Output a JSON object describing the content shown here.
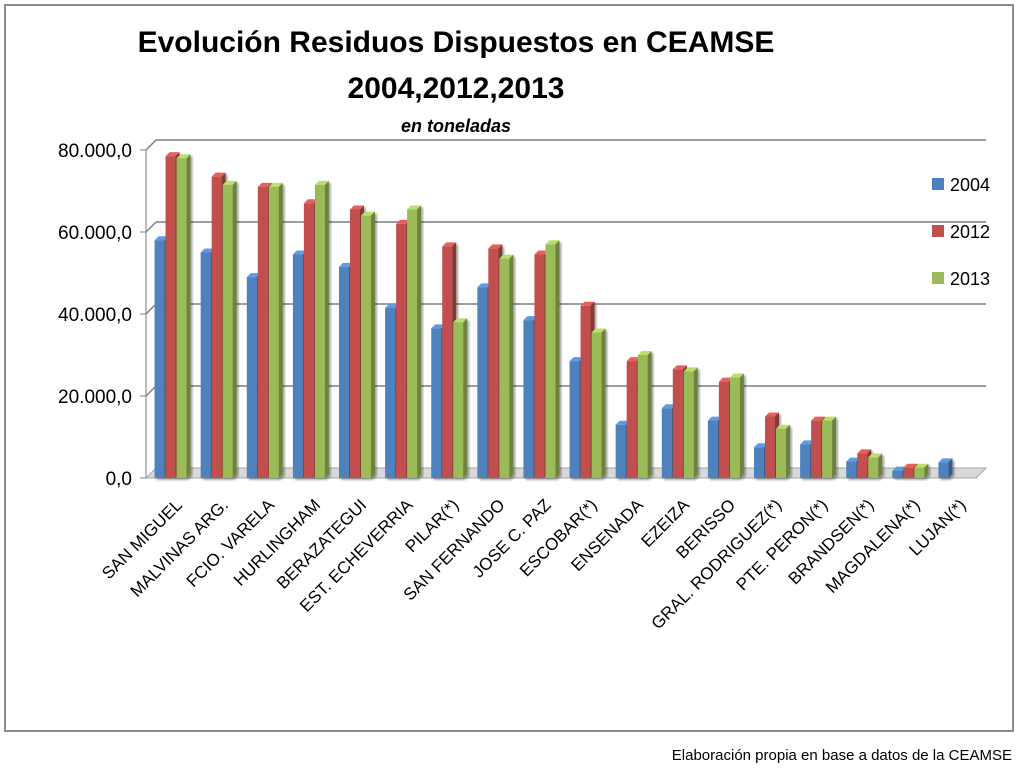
{
  "chart_data": {
    "type": "bar",
    "title": "Evolución Residuos Dispuestos en CEAMSE",
    "title_line2": "2004,2012,2013",
    "subtitle": "en toneladas",
    "ylim": [
      0,
      80000
    ],
    "yticks": [
      "0,0",
      "20.000,0",
      "40.000,0",
      "60.000,0",
      "80.000,0"
    ],
    "ytick_values": [
      0,
      20000,
      40000,
      60000,
      80000
    ],
    "grid": true,
    "legend_position": "right",
    "categories": [
      "SAN MIGUEL",
      "MALVINAS ARG.",
      "FCIO. VARELA",
      "HURLINGHAM",
      "BERAZATEGUI",
      "EST. ECHEVERRIA",
      "PILAR(*)",
      "SAN FERNANDO",
      "JOSE C. PAZ",
      "ESCOBAR(*)",
      "ENSENADA",
      "EZEIZA",
      "BERISSO",
      "GRAL. RODRIGUEZ(*)",
      "PTE. PERON(*)",
      "BRANDSEN(*)",
      "MAGDALENA(*)",
      "LUJAN(*)"
    ],
    "series": [
      {
        "name": "2004",
        "color": "#4f81bd",
        "values": [
          58000,
          55000,
          49000,
          54500,
          51500,
          41500,
          36500,
          46500,
          38500,
          28500,
          13000,
          17000,
          14000,
          7500,
          8200,
          4000,
          1800,
          3800
        ]
      },
      {
        "name": "2012",
        "color": "#c0504d",
        "values": [
          78500,
          73500,
          71000,
          67000,
          65500,
          62000,
          56500,
          56000,
          54500,
          42000,
          28500,
          26500,
          23500,
          15000,
          14000,
          6000,
          2500,
          0
        ]
      },
      {
        "name": "2013",
        "color": "#9bbb59",
        "values": [
          78000,
          71500,
          71000,
          71500,
          64000,
          65500,
          38000,
          53500,
          57000,
          35500,
          30000,
          26000,
          24500,
          12000,
          14000,
          5000,
          2500,
          0
        ]
      }
    ]
  },
  "footer": {
    "source": "Elaboración propia en base a datos de la CEAMSE"
  }
}
